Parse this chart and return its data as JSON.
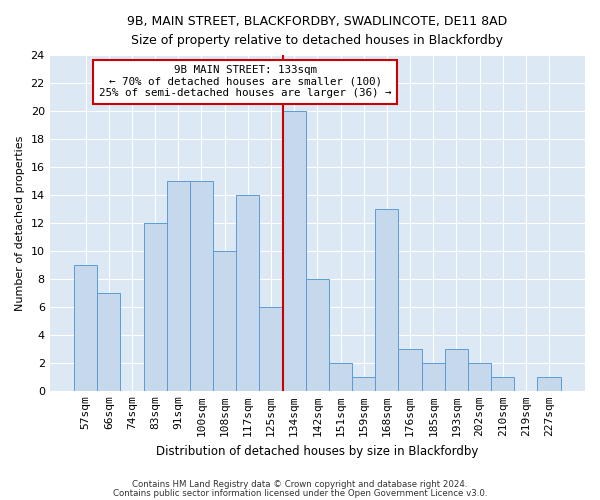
{
  "title1": "9B, MAIN STREET, BLACKFORDBY, SWADLINCOTE, DE11 8AD",
  "title2": "Size of property relative to detached houses in Blackfordby",
  "xlabel": "Distribution of detached houses by size in Blackfordby",
  "ylabel": "Number of detached properties",
  "categories": [
    "57sqm",
    "66sqm",
    "74sqm",
    "83sqm",
    "91sqm",
    "100sqm",
    "108sqm",
    "117sqm",
    "125sqm",
    "134sqm",
    "142sqm",
    "151sqm",
    "159sqm",
    "168sqm",
    "176sqm",
    "185sqm",
    "193sqm",
    "202sqm",
    "210sqm",
    "219sqm",
    "227sqm"
  ],
  "values": [
    9,
    7,
    0,
    12,
    15,
    15,
    10,
    14,
    6,
    20,
    8,
    2,
    1,
    13,
    3,
    2,
    3,
    2,
    1,
    0,
    1
  ],
  "bar_color": "#c6d9ec",
  "bar_edge_color": "#5b9bd5",
  "highlight_index": 9,
  "highlight_line_color": "#cc0000",
  "annotation_line1": "9B MAIN STREET: 133sqm",
  "annotation_line2": "← 70% of detached houses are smaller (100)",
  "annotation_line3": "25% of semi-detached houses are larger (36) →",
  "annotation_box_color": "#ffffff",
  "annotation_box_edge": "#cc0000",
  "ylim": [
    0,
    24
  ],
  "yticks": [
    0,
    2,
    4,
    6,
    8,
    10,
    12,
    14,
    16,
    18,
    20,
    22,
    24
  ],
  "background_color": "#dce9f5",
  "grid_color": "#ffffff",
  "footer1": "Contains HM Land Registry data © Crown copyright and database right 2024.",
  "footer2": "Contains public sector information licensed under the Open Government Licence v3.0."
}
